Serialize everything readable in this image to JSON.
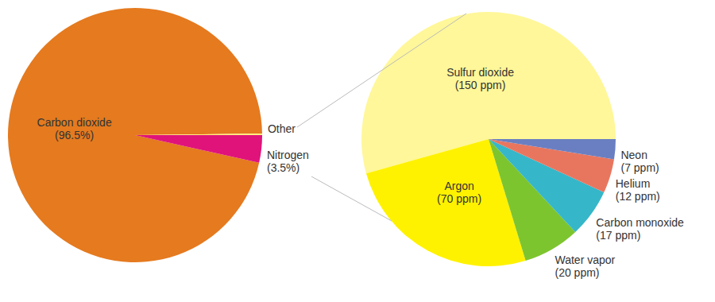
{
  "chart_data": [
    {
      "type": "pie",
      "categories": [
        "Carbon dioxide",
        "Nitrogen",
        "Other"
      ],
      "values": [
        96.5,
        3.5,
        0.2
      ],
      "value_labels": [
        "(96.5%)",
        "(3.5%)",
        null
      ],
      "data_labels": true,
      "colors": [
        "#e57a1f",
        "#e0137a",
        "#fff07a"
      ]
    },
    {
      "type": "pie",
      "categories": [
        "Sulfur dioxide",
        "Argon",
        "Water vapor",
        "Carbon monoxide",
        "Helium",
        "Neon"
      ],
      "values": [
        150,
        70,
        20,
        17,
        12,
        7
      ],
      "value_labels": [
        "(150 ppm)",
        "(70 ppm)",
        "(20 ppm)",
        "(17 ppm)",
        "(12 ppm)",
        "(7 ppm)"
      ],
      "data_labels": true,
      "colors": [
        "#fff799",
        "#fff200",
        "#7dc52e",
        "#35b7c9",
        "#e8765f",
        "#6a7fc1"
      ]
    }
  ]
}
